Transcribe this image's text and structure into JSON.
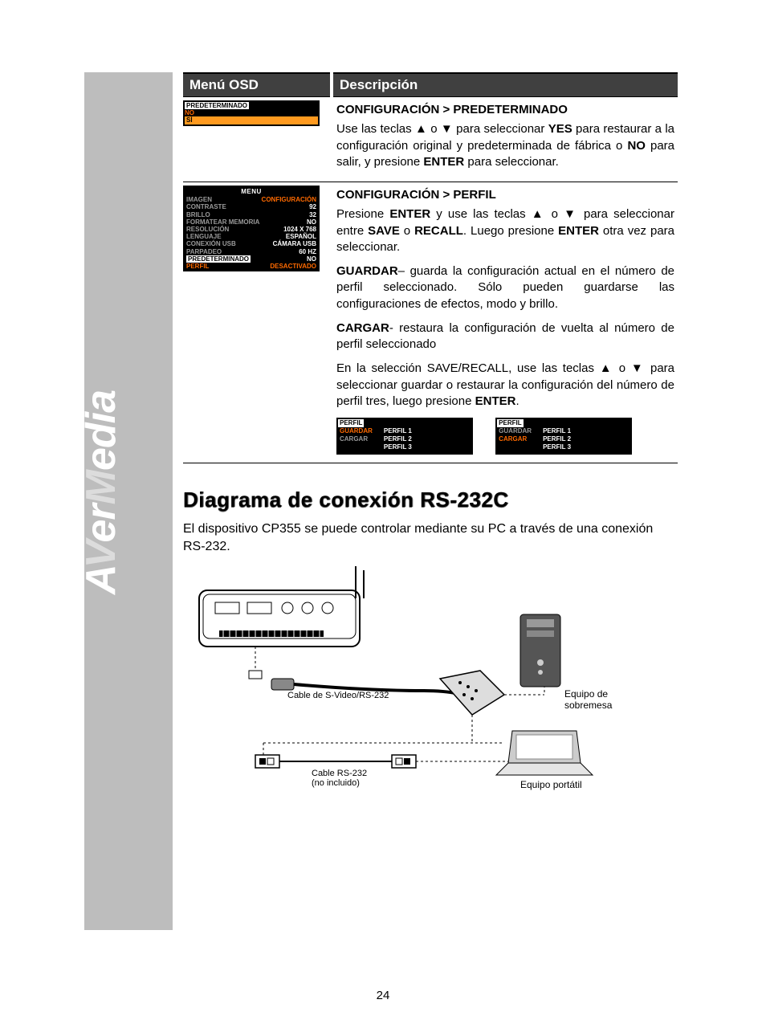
{
  "table": {
    "headers": {
      "left": "Menú OSD",
      "right": "Descripción"
    },
    "rows": [
      {
        "osd": {
          "title_bg": "#000000",
          "highlight_color": "#ff6a00",
          "selected_bg": "#ff9a1f",
          "gray": "#9a9a9a",
          "header": "PREDETERMINADO",
          "opt_no": "NO",
          "opt_si": "SÍ"
        },
        "desc": {
          "title": "CONFIGURACIÓN > PREDETERMINADO",
          "p1_a": "Use las teclas ▲ o ▼ para seleccionar ",
          "p1_b": "YES",
          "p1_c": " para restaurar a la configuración original y predeterminada de fábrica o ",
          "p1_d": "NO",
          "p1_e": " para salir, y presione ",
          "p1_f": "ENTER",
          "p1_g": " para seleccionar."
        }
      },
      {
        "osd": {
          "menu": "MENU",
          "tab_left": "IMAGEN",
          "tab_right": "CONFIGURACIÓN",
          "rows": [
            {
              "l": "CONTRASTE",
              "r": "92"
            },
            {
              "l": "BRILLO",
              "r": "32"
            },
            {
              "l": "FORMATEAR MEMORIA",
              "r": "NO"
            },
            {
              "l": "RESOLUCIÓN",
              "r": "1024 X 768"
            },
            {
              "l": "LENGUAJE",
              "r": "ESPAÑOL"
            },
            {
              "l": "CONEXIÓN USB",
              "r": "CÁMARA USB"
            },
            {
              "l": "PARPADEO",
              "r": "60 HZ"
            },
            {
              "l": "PREDETERMINADO",
              "r": "NO"
            },
            {
              "l": "PERFIL",
              "r": "DESACTIVADO"
            }
          ]
        },
        "desc": {
          "title": "CONFIGURACIÓN > PERFIL",
          "p1_a": "Presione ",
          "p1_b": "ENTER",
          "p1_c": " y use las teclas ▲ o ▼ para seleccionar entre ",
          "p1_d": "SAVE",
          "p1_e": " o ",
          "p1_f": "RECALL",
          "p1_g": ". Luego presione ",
          "p1_h": "ENTER",
          "p1_i": " otra vez para seleccionar.",
          "p2_a": "GUARDAR",
          "p2_b": "– guarda la configuración actual en el número de perfil seleccionado. Sólo pueden guardarse las configuraciones de efectos, modo y brillo.",
          "p3_a": "CARGAR",
          "p3_b": "- restaura la configuración de vuelta al número de perfil seleccionado",
          "p4": "En la selección SAVE/RECALL, use las teclas ▲ o ▼ para seleccionar guardar o restaurar la configuración del número de perfil tres, luego presione ",
          "p4_b": "ENTER",
          "p4_c": ".",
          "perfil_boxes": {
            "title": "PERFIL",
            "guardar": "GUARDAR",
            "cargar": "CARGAR",
            "p1": "PERFIL 1",
            "p2": "PERFIL 2",
            "p3": "PERFIL 3"
          }
        }
      }
    ]
  },
  "section": {
    "heading": "Diagrama de conexión RS-232C",
    "intro": "El dispositivo CP355 se puede controlar mediante su PC a través de una conexión RS-232.",
    "labels": {
      "svideo": "Cable de S-Video/RS-232",
      "rs232": "Cable RS-232",
      "not_included": "(no incluido)",
      "desktop1": "Equipo de",
      "desktop2": "sobremesa",
      "laptop": "Equipo portátil"
    }
  },
  "page_number": "24",
  "brand": "AVerMedia",
  "colors": {
    "header_bg": "#404040",
    "sidebar": "#bdbdbd",
    "orange": "#ff6a00",
    "orange_bg": "#ff9a1f"
  }
}
